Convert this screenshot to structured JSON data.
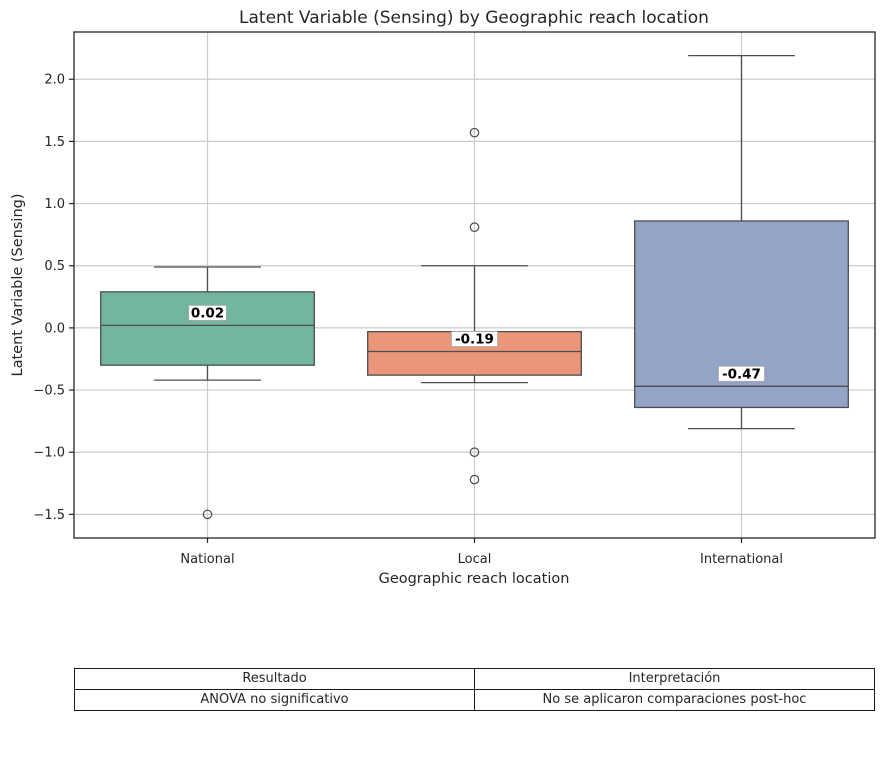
{
  "chart_data": {
    "type": "box",
    "title": "Latent Variable (Sensing) by Geographic reach location",
    "xlabel": "Geographic reach location",
    "ylabel": "Latent Variable (Sensing)",
    "ylim": [
      -1.69,
      2.38
    ],
    "yticks": [
      2.0,
      1.5,
      1.0,
      0.5,
      0.0,
      -0.5,
      -1.0,
      -1.5
    ],
    "ytick_labels": [
      "2.0",
      "1.5",
      "1.0",
      "0.5",
      "0.0",
      "−0.5",
      "−1.0",
      "−1.5"
    ],
    "grid": true,
    "categories": [
      "National",
      "Local",
      "International"
    ],
    "boxes": [
      {
        "category": "National",
        "color": "#72b6a1",
        "whisker_low": -0.42,
        "q1": -0.3,
        "median": 0.02,
        "q3": 0.29,
        "whisker_high": 0.49,
        "outliers": [
          -1.5
        ],
        "median_label": "0.02"
      },
      {
        "category": "Local",
        "color": "#e9967a",
        "whisker_low": -0.44,
        "q1": -0.38,
        "median": -0.19,
        "q3": -0.03,
        "whisker_high": 0.5,
        "outliers": [
          1.57,
          0.81,
          -1.0,
          -1.22
        ],
        "median_label": "-0.19"
      },
      {
        "category": "International",
        "color": "#94a4c6",
        "whisker_low": -0.81,
        "q1": -0.64,
        "median": -0.47,
        "q3": 0.86,
        "whisker_high": 2.19,
        "outliers": [],
        "median_label": "-0.47"
      }
    ]
  },
  "table": {
    "headers": [
      "Resultado",
      "Interpretación"
    ],
    "rows": [
      [
        "ANOVA no significativo",
        "No se aplicaron comparaciones post-hoc"
      ]
    ]
  }
}
